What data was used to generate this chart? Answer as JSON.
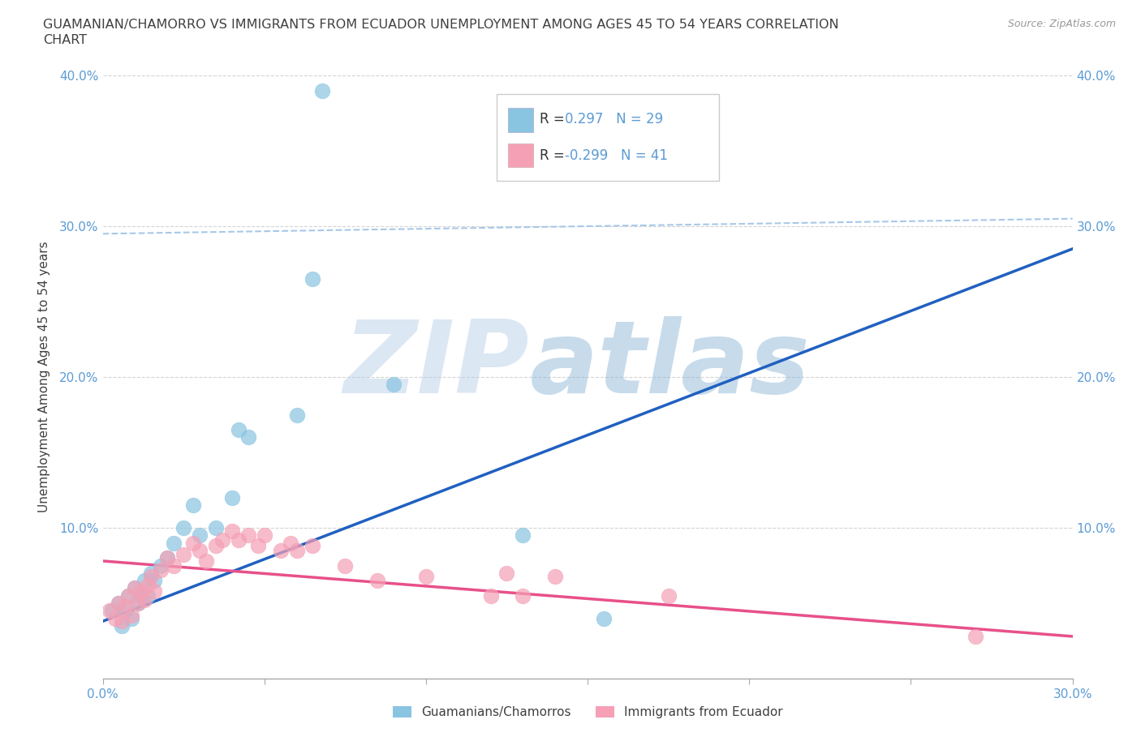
{
  "title_line1": "GUAMANIAN/CHAMORRO VS IMMIGRANTS FROM ECUADOR UNEMPLOYMENT AMONG AGES 45 TO 54 YEARS CORRELATION",
  "title_line2": "CHART",
  "source_text": "Source: ZipAtlas.com",
  "watermark_zip": "ZIP",
  "watermark_atlas": "atlas",
  "ylabel": "Unemployment Among Ages 45 to 54 years",
  "xlim": [
    0.0,
    0.3
  ],
  "ylim": [
    0.0,
    0.4
  ],
  "xticks": [
    0.0,
    0.05,
    0.1,
    0.15,
    0.2,
    0.25,
    0.3
  ],
  "yticks": [
    0.0,
    0.1,
    0.2,
    0.3,
    0.4
  ],
  "xtick_labels": [
    "0.0%",
    "",
    "",
    "",
    "",
    "",
    "30.0%"
  ],
  "ytick_labels": [
    "",
    "10.0%",
    "20.0%",
    "30.0%",
    "40.0%"
  ],
  "blue_scatter": [
    [
      0.003,
      0.045
    ],
    [
      0.005,
      0.05
    ],
    [
      0.006,
      0.035
    ],
    [
      0.007,
      0.045
    ],
    [
      0.008,
      0.055
    ],
    [
      0.009,
      0.04
    ],
    [
      0.01,
      0.06
    ],
    [
      0.011,
      0.05
    ],
    [
      0.012,
      0.055
    ],
    [
      0.013,
      0.065
    ],
    [
      0.014,
      0.055
    ],
    [
      0.015,
      0.07
    ],
    [
      0.016,
      0.065
    ],
    [
      0.018,
      0.075
    ],
    [
      0.02,
      0.08
    ],
    [
      0.022,
      0.09
    ],
    [
      0.025,
      0.1
    ],
    [
      0.028,
      0.115
    ],
    [
      0.03,
      0.095
    ],
    [
      0.035,
      0.1
    ],
    [
      0.04,
      0.12
    ],
    [
      0.042,
      0.165
    ],
    [
      0.045,
      0.16
    ],
    [
      0.06,
      0.175
    ],
    [
      0.065,
      0.265
    ],
    [
      0.068,
      0.39
    ],
    [
      0.09,
      0.195
    ],
    [
      0.13,
      0.095
    ],
    [
      0.155,
      0.04
    ]
  ],
  "pink_scatter": [
    [
      0.002,
      0.045
    ],
    [
      0.004,
      0.04
    ],
    [
      0.005,
      0.05
    ],
    [
      0.006,
      0.038
    ],
    [
      0.007,
      0.048
    ],
    [
      0.008,
      0.055
    ],
    [
      0.009,
      0.042
    ],
    [
      0.01,
      0.06
    ],
    [
      0.011,
      0.05
    ],
    [
      0.012,
      0.058
    ],
    [
      0.013,
      0.052
    ],
    [
      0.014,
      0.062
    ],
    [
      0.015,
      0.068
    ],
    [
      0.016,
      0.058
    ],
    [
      0.018,
      0.072
    ],
    [
      0.02,
      0.08
    ],
    [
      0.022,
      0.075
    ],
    [
      0.025,
      0.082
    ],
    [
      0.028,
      0.09
    ],
    [
      0.03,
      0.085
    ],
    [
      0.032,
      0.078
    ],
    [
      0.035,
      0.088
    ],
    [
      0.037,
      0.092
    ],
    [
      0.04,
      0.098
    ],
    [
      0.042,
      0.092
    ],
    [
      0.045,
      0.095
    ],
    [
      0.048,
      0.088
    ],
    [
      0.05,
      0.095
    ],
    [
      0.055,
      0.085
    ],
    [
      0.058,
      0.09
    ],
    [
      0.06,
      0.085
    ],
    [
      0.065,
      0.088
    ],
    [
      0.075,
      0.075
    ],
    [
      0.085,
      0.065
    ],
    [
      0.1,
      0.068
    ],
    [
      0.12,
      0.055
    ],
    [
      0.125,
      0.07
    ],
    [
      0.13,
      0.055
    ],
    [
      0.14,
      0.068
    ],
    [
      0.175,
      0.055
    ],
    [
      0.27,
      0.028
    ]
  ],
  "blue_line_x": [
    0.0,
    0.3
  ],
  "blue_line_y": [
    0.038,
    0.285
  ],
  "pink_line_x": [
    0.0,
    0.3
  ],
  "pink_line_y": [
    0.078,
    0.028
  ],
  "dashed_line_x": [
    0.0,
    0.3
  ],
  "dashed_line_y": [
    0.295,
    0.305
  ],
  "blue_R": "0.297",
  "blue_N": "29",
  "pink_R": "-0.299",
  "pink_N": "41",
  "scatter_blue_color": "#89c4e1",
  "scatter_pink_color": "#f5a0b5",
  "line_blue_color": "#2060c0",
  "line_pink_color": "#e8508a",
  "dashed_line_color": "#a8c8e8",
  "grid_color": "#d0d0d0",
  "axis_color": "#aaaaaa",
  "tick_label_color": "#5b9bd5",
  "title_color": "#404040",
  "watermark_color_zip": "#b8d0e8",
  "watermark_color_atlas": "#90b8d8",
  "background_color": "#ffffff",
  "legend_text_color": "#5b9bd5",
  "legend_label_color": "#333333"
}
